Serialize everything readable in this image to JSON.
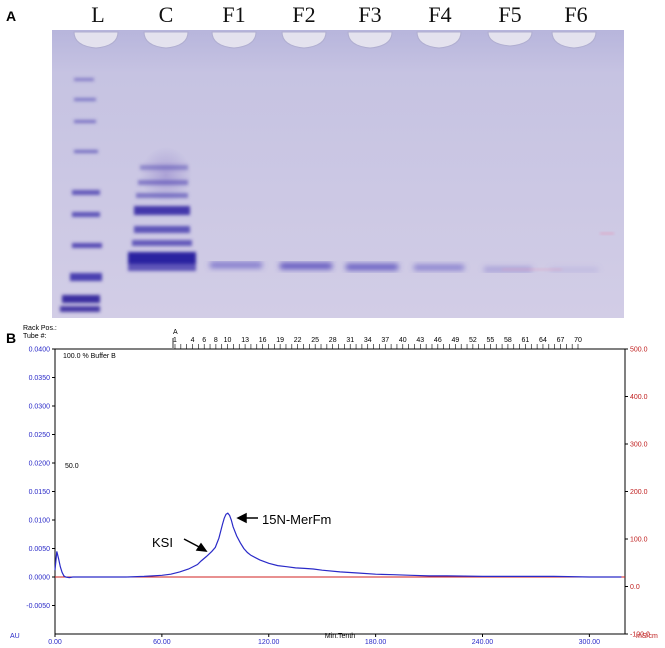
{
  "panel_a": {
    "label": "A",
    "lanes": [
      "L",
      "C",
      "F1",
      "F2",
      "F3",
      "F4",
      "F5",
      "F6"
    ]
  },
  "panel_b": {
    "label": "B",
    "rack_pos_label": "Rack Pos.:",
    "tube_label": "Tube #:",
    "rack_letter": "A",
    "tube_numbers": [
      "1",
      "4",
      "6",
      "8",
      "10",
      "13",
      "16",
      "19",
      "22",
      "25",
      "28",
      "31",
      "34",
      "37",
      "40",
      "43",
      "46",
      "49",
      "52",
      "55",
      "58",
      "61",
      "64",
      "67",
      "70"
    ],
    "buffer_text": "100.0 % Buffer B",
    "mid_text": "50.0",
    "left_unit": "AU",
    "right_unit": "mS/cm",
    "x_label": "Min.Tenth",
    "annotations": {
      "ksi": "KSI",
      "peak": "15N-MerFm"
    },
    "colors": {
      "trace": "#2a2ac8",
      "baseline": "#d22020",
      "right_axis": "#c02020"
    }
  },
  "chart_data": {
    "type": "line",
    "xlabel": "Min.Tenth",
    "ylabel": "AU",
    "y2label": "mS/cm",
    "xlim": [
      0,
      320
    ],
    "ylim": [
      -0.01,
      0.04
    ],
    "y2lim": [
      -100,
      500
    ],
    "x_ticks": [
      "0.00",
      "60.00",
      "120.00",
      "180.00",
      "240.00",
      "300.00"
    ],
    "y_ticks": [
      "0.0400",
      "0.0350",
      "0.0300",
      "0.0250",
      "0.0200",
      "0.0150",
      "0.0100",
      "0.0050",
      "0.0000",
      "-0.0050"
    ],
    "y2_ticks": [
      "500.0",
      "400.0",
      "300.0",
      "200.0",
      "100.0",
      "0.0",
      "-100.0"
    ],
    "series": [
      {
        "x": [
          0,
          1,
          2,
          3,
          4,
          5,
          6,
          8,
          10,
          15,
          20,
          30,
          40,
          50,
          60,
          65,
          70,
          75,
          80,
          82,
          85,
          88,
          90,
          92,
          94,
          95,
          96,
          97,
          98,
          99,
          100,
          102,
          104,
          106,
          108,
          110,
          115,
          120,
          125,
          130,
          135,
          140,
          145,
          150,
          160,
          170,
          180,
          190,
          200,
          210,
          220,
          240,
          260,
          280,
          300,
          318
        ],
        "values": [
          0.0012,
          0.0045,
          0.0032,
          0.0018,
          0.0008,
          0.0002,
          0.0,
          -0.0001,
          0.0,
          0.0,
          0.0,
          0.0,
          0.0,
          0.0001,
          0.0003,
          0.0005,
          0.0009,
          0.0014,
          0.0022,
          0.0028,
          0.0036,
          0.0045,
          0.0052,
          0.0068,
          0.0092,
          0.0103,
          0.011,
          0.0112,
          0.0108,
          0.01,
          0.0088,
          0.0072,
          0.006,
          0.005,
          0.0043,
          0.0038,
          0.003,
          0.0024,
          0.002,
          0.0018,
          0.0016,
          0.0015,
          0.0014,
          0.0012,
          0.0009,
          0.0007,
          0.0005,
          0.0004,
          0.0003,
          0.0002,
          0.0002,
          0.0001,
          0.0001,
          0.0001,
          0.0,
          0.0
        ]
      },
      {
        "x": [
          0,
          320
        ],
        "values": [
          0.0,
          0.0
        ]
      }
    ],
    "annotations": [
      "KSI",
      "15N-MerFm"
    ]
  }
}
